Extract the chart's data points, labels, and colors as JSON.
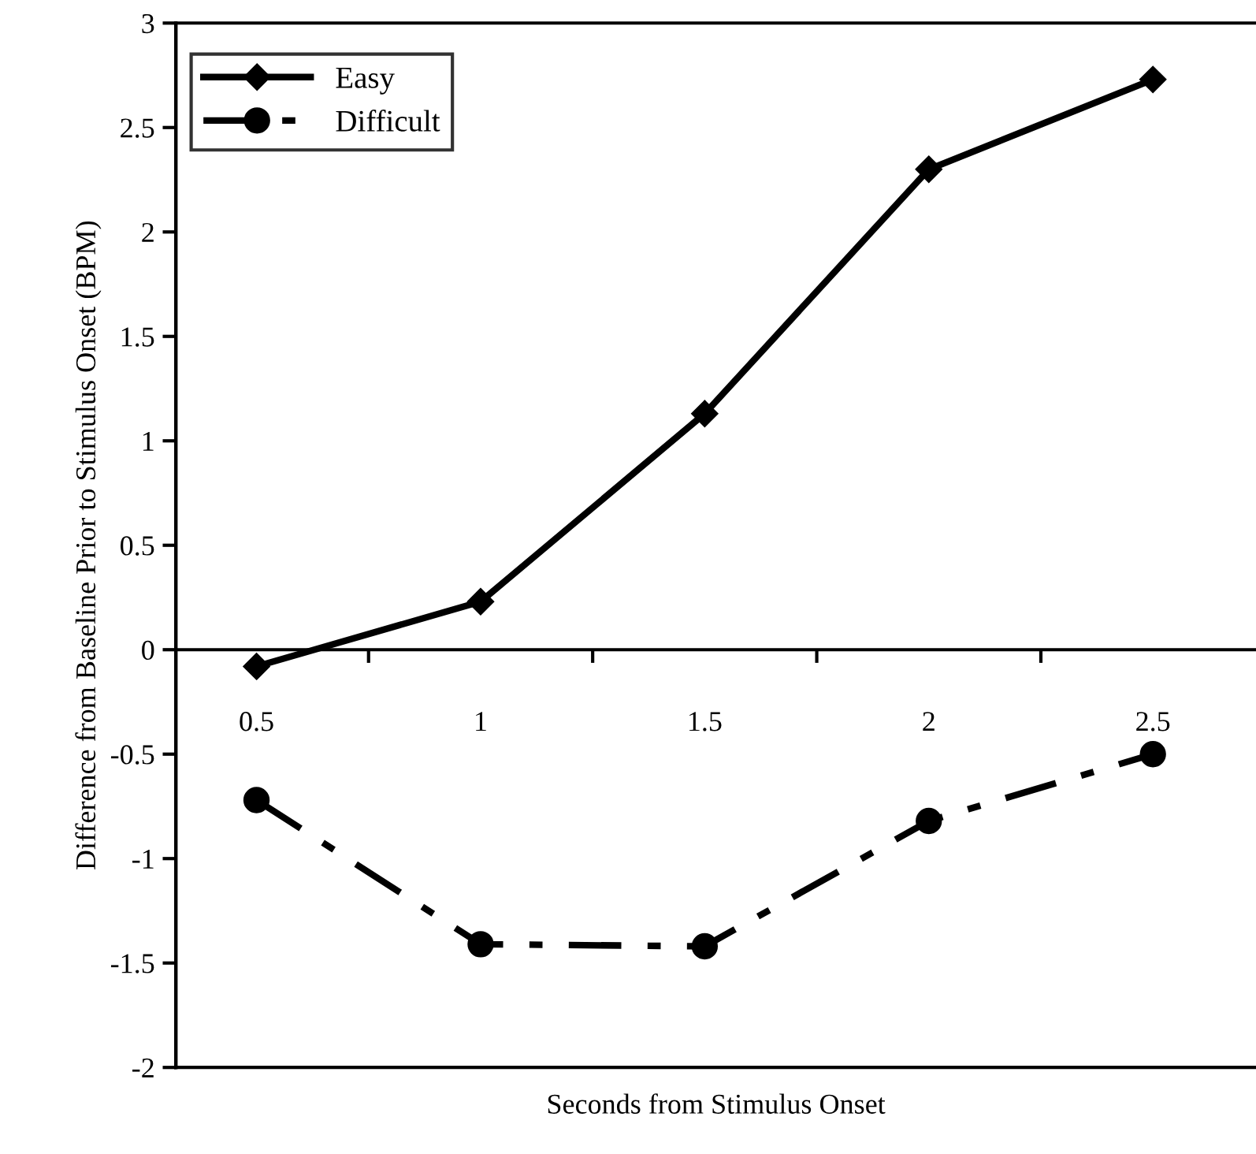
{
  "chart_data": {
    "type": "line",
    "xlabel": "Seconds from Stimulus Onset",
    "ylabel": "Difference from Baseline Prior to Stimulus Onset (BPM)",
    "categories": [
      "0.5",
      "1",
      "1.5",
      "2",
      "2.5"
    ],
    "series": [
      {
        "name": "Easy",
        "color": "#000000",
        "marker": "diamond",
        "line_style": "solid",
        "values": [
          -0.08,
          0.23,
          1.13,
          2.3,
          2.73
        ]
      },
      {
        "name": "Difficult",
        "color": "#000000",
        "marker": "circle",
        "line_style": "dashed",
        "values": [
          -0.72,
          -1.41,
          -1.42,
          -0.82,
          -0.5
        ]
      }
    ],
    "ylim": [
      -2,
      3
    ],
    "yticks": [
      -2,
      -1.5,
      -1,
      -0.5,
      0,
      0.5,
      1,
      1.5,
      2,
      2.5,
      3
    ],
    "grid": false,
    "legend": "top left"
  }
}
